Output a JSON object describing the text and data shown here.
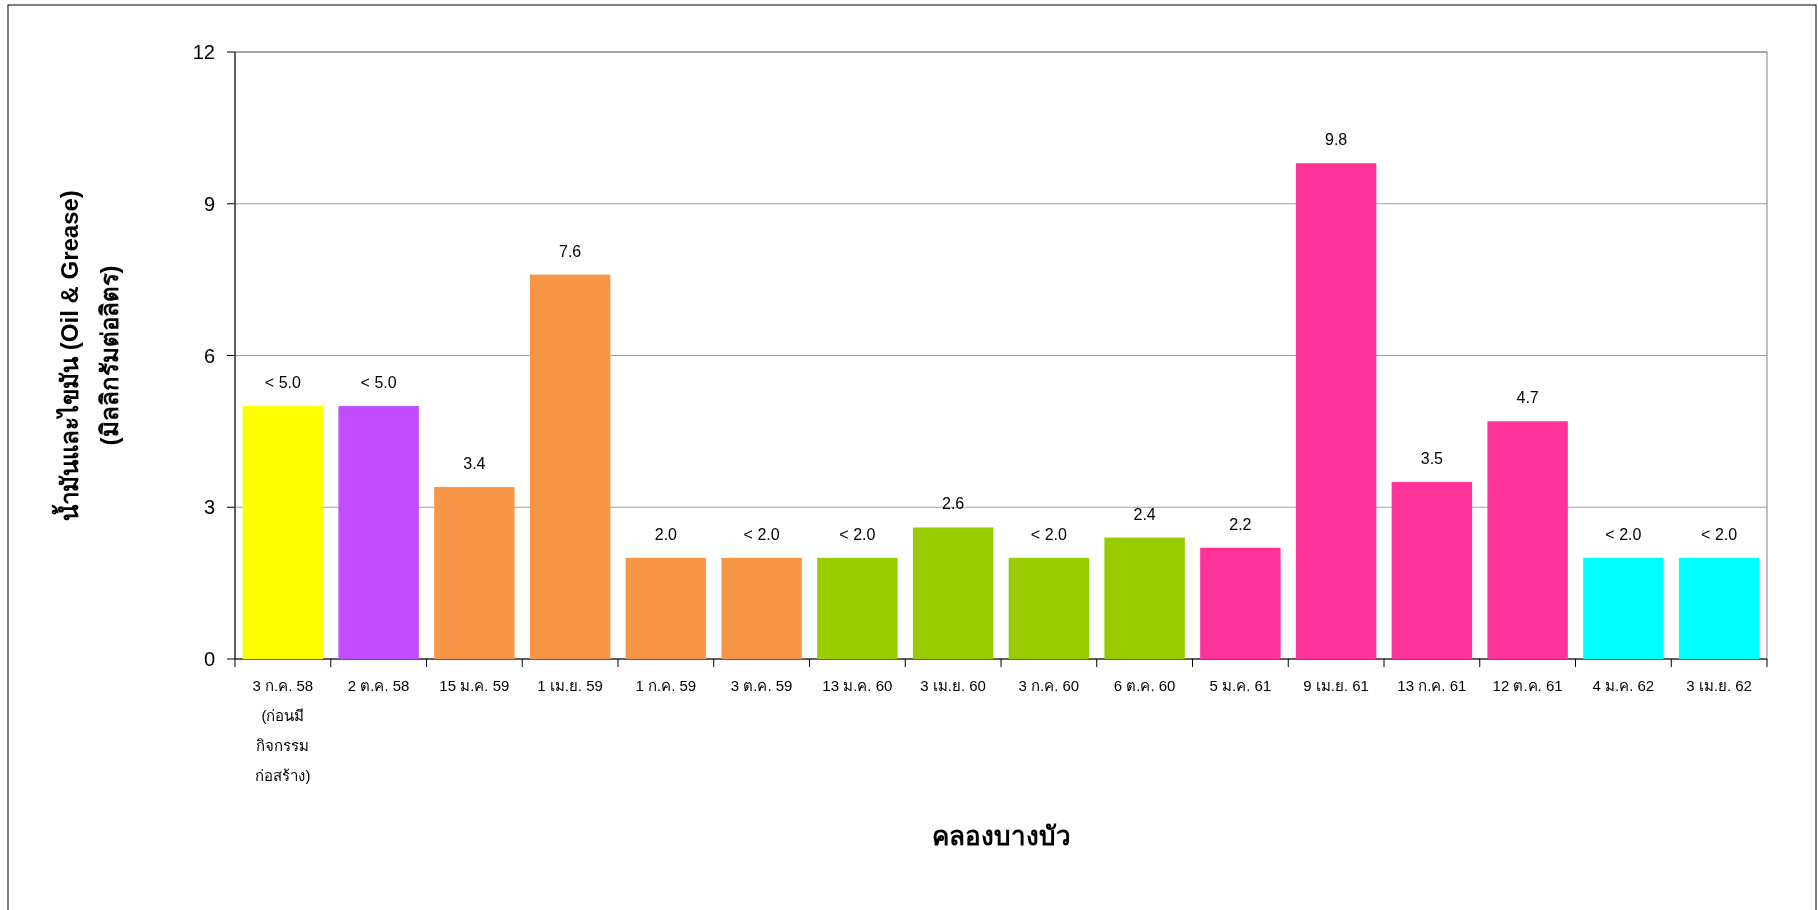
{
  "chart_data": {
    "type": "bar",
    "xlabel": "คลองบางบัว",
    "ylabel": "น้ำมันและไขมัน (Oil & Grease)\n(มิลลิกรัมต่อลิตร)",
    "categories": [
      "3 ก.ค. 58\n(ก่อนมี\nกิจกรรม\nก่อสร้าง)",
      "2 ต.ค. 58",
      "15 ม.ค. 59",
      "1 เม.ย. 59",
      "1 ก.ค. 59",
      "3 ต.ค. 59",
      "13 ม.ค. 60",
      "3 เม.ย. 60",
      "3 ก.ค. 60",
      "6 ต.ค. 60",
      "5 ม.ค. 61",
      "9 เม.ย. 61",
      "13 ก.ค. 61",
      "12 ต.ค. 61",
      "4 ม.ค. 62",
      "3 เม.ย. 62"
    ],
    "values": [
      5.0,
      5.0,
      3.4,
      7.6,
      2.0,
      2.0,
      2.0,
      2.6,
      2.0,
      2.4,
      2.2,
      9.8,
      3.5,
      4.7,
      2.0,
      2.0
    ],
    "value_labels": [
      "< 5.0",
      "< 5.0",
      "3.4",
      "7.6",
      "2.0",
      "< 2.0",
      "< 2.0",
      "2.6",
      "< 2.0",
      "2.4",
      "2.2",
      "9.8",
      "3.5",
      "4.7",
      "< 2.0",
      "< 2.0"
    ],
    "colors": [
      "#ffff00",
      "#c04cff",
      "#f79646",
      "#f79646",
      "#f79646",
      "#f79646",
      "#99cc00",
      "#99cc00",
      "#99cc00",
      "#99cc00",
      "#ff3399",
      "#ff3399",
      "#ff3399",
      "#ff3399",
      "#00ffff",
      "#00ffff"
    ],
    "ylim": [
      0,
      12
    ],
    "yticks": [
      0,
      3,
      6,
      9,
      12
    ],
    "grid": "y"
  }
}
